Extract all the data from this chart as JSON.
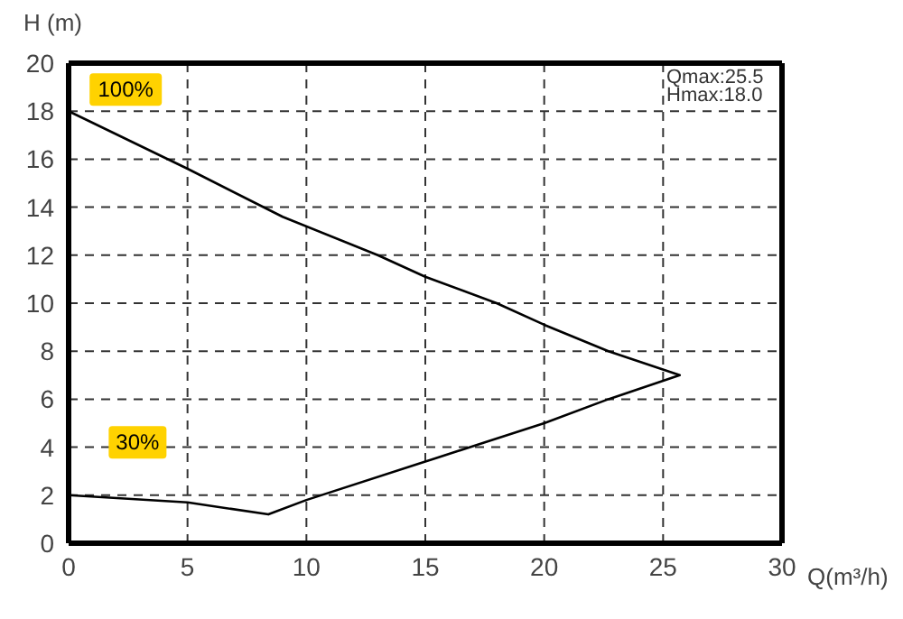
{
  "chart_data": {
    "type": "line",
    "xlabel": "Q(m³/h)",
    "ylabel": "H (m)",
    "series": [
      {
        "color": "#000000",
        "x": [
          0,
          5,
          9,
          13,
          15,
          18,
          20,
          22.7,
          25.7,
          22.7,
          20,
          17.5,
          15,
          10,
          8.4,
          5,
          0
        ],
        "values": [
          18,
          15.6,
          13.6,
          12,
          11.1,
          10,
          9.1,
          8,
          7,
          6,
          5,
          4.2,
          3.4,
          1.8,
          1.2,
          1.7,
          2
        ]
      }
    ],
    "xlim": [
      0,
      30
    ],
    "xticks": [
      0,
      5,
      10,
      15,
      20,
      25,
      30
    ],
    "ylim": [
      0,
      20
    ],
    "yticks": [
      0,
      2,
      4,
      6,
      8,
      10,
      12,
      14,
      16,
      18,
      20
    ],
    "grid": true,
    "marker": "none",
    "line_style": "solid",
    "annotations": [
      {
        "text": "100%",
        "x": 2.4,
        "y": 18.9
      },
      {
        "text": "30%",
        "x": 2.9,
        "y": 4.2
      },
      "Qmax:25.5",
      "Hmax:18.0"
    ]
  }
}
